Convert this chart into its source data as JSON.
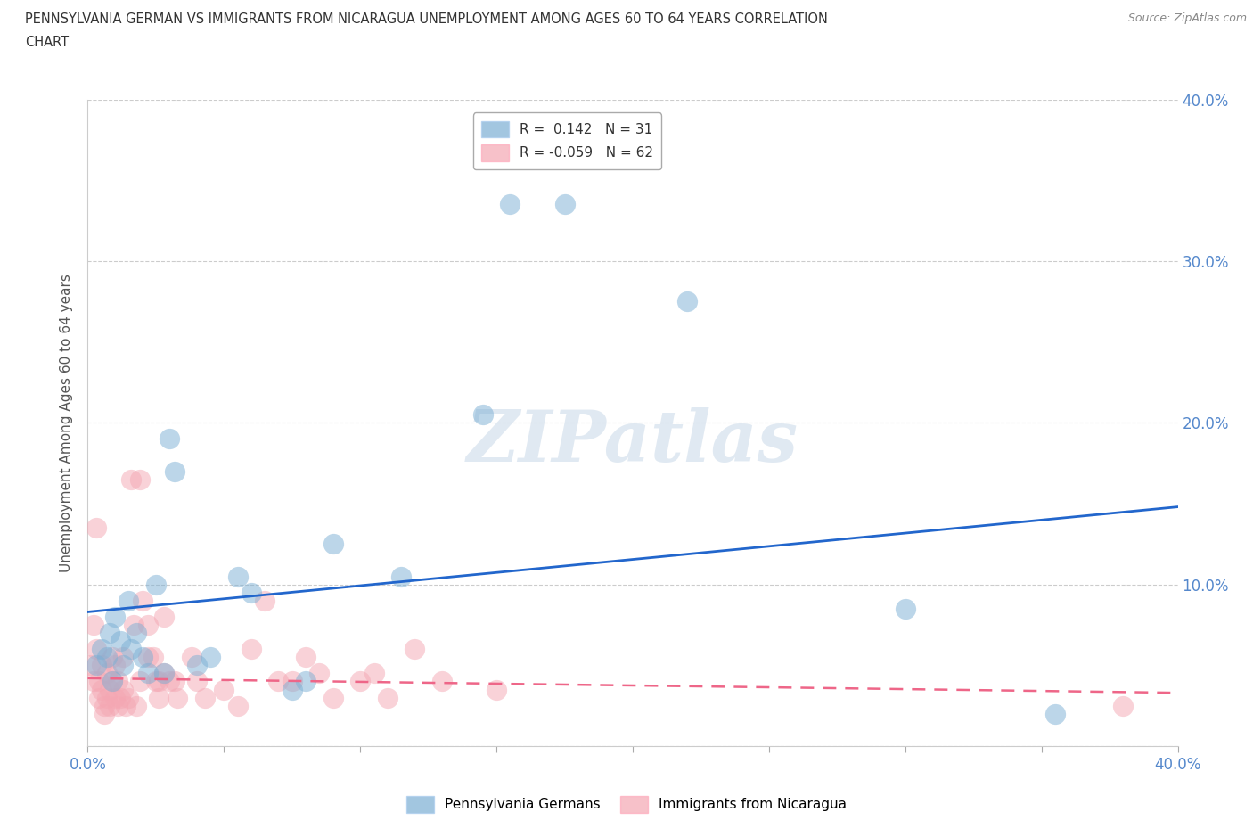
{
  "title_line1": "PENNSYLVANIA GERMAN VS IMMIGRANTS FROM NICARAGUA UNEMPLOYMENT AMONG AGES 60 TO 64 YEARS CORRELATION",
  "title_line2": "CHART",
  "source": "Source: ZipAtlas.com",
  "ylabel": "Unemployment Among Ages 60 to 64 years",
  "xlim": [
    0.0,
    0.4
  ],
  "ylim": [
    0.0,
    0.4
  ],
  "xticks": [
    0.0,
    0.05,
    0.1,
    0.15,
    0.2,
    0.25,
    0.3,
    0.35,
    0.4
  ],
  "yticks": [
    0.0,
    0.1,
    0.2,
    0.3,
    0.4
  ],
  "legend_r1": "R =  0.142   N = 31",
  "legend_r2": "R = -0.059   N = 62",
  "color_blue": "#7BAFD4",
  "color_pink": "#F4A7B3",
  "watermark": "ZIPatlas",
  "blue_scatter": [
    [
      0.003,
      0.05
    ],
    [
      0.005,
      0.06
    ],
    [
      0.007,
      0.055
    ],
    [
      0.008,
      0.07
    ],
    [
      0.009,
      0.04
    ],
    [
      0.01,
      0.08
    ],
    [
      0.012,
      0.065
    ],
    [
      0.013,
      0.05
    ],
    [
      0.015,
      0.09
    ],
    [
      0.016,
      0.06
    ],
    [
      0.018,
      0.07
    ],
    [
      0.02,
      0.055
    ],
    [
      0.022,
      0.045
    ],
    [
      0.025,
      0.1
    ],
    [
      0.028,
      0.045
    ],
    [
      0.03,
      0.19
    ],
    [
      0.032,
      0.17
    ],
    [
      0.04,
      0.05
    ],
    [
      0.045,
      0.055
    ],
    [
      0.055,
      0.105
    ],
    [
      0.06,
      0.095
    ],
    [
      0.075,
      0.035
    ],
    [
      0.08,
      0.04
    ],
    [
      0.09,
      0.125
    ],
    [
      0.115,
      0.105
    ],
    [
      0.145,
      0.205
    ],
    [
      0.155,
      0.335
    ],
    [
      0.175,
      0.335
    ],
    [
      0.22,
      0.275
    ],
    [
      0.3,
      0.085
    ],
    [
      0.355,
      0.02
    ]
  ],
  "pink_scatter": [
    [
      0.001,
      0.05
    ],
    [
      0.002,
      0.075
    ],
    [
      0.002,
      0.04
    ],
    [
      0.003,
      0.135
    ],
    [
      0.003,
      0.06
    ],
    [
      0.004,
      0.04
    ],
    [
      0.004,
      0.03
    ],
    [
      0.005,
      0.05
    ],
    [
      0.005,
      0.035
    ],
    [
      0.006,
      0.025
    ],
    [
      0.006,
      0.02
    ],
    [
      0.007,
      0.045
    ],
    [
      0.007,
      0.03
    ],
    [
      0.008,
      0.035
    ],
    [
      0.008,
      0.025
    ],
    [
      0.009,
      0.055
    ],
    [
      0.009,
      0.04
    ],
    [
      0.01,
      0.03
    ],
    [
      0.01,
      0.05
    ],
    [
      0.011,
      0.04
    ],
    [
      0.011,
      0.025
    ],
    [
      0.012,
      0.03
    ],
    [
      0.013,
      0.055
    ],
    [
      0.013,
      0.035
    ],
    [
      0.014,
      0.025
    ],
    [
      0.015,
      0.03
    ],
    [
      0.016,
      0.165
    ],
    [
      0.017,
      0.075
    ],
    [
      0.018,
      0.025
    ],
    [
      0.019,
      0.165
    ],
    [
      0.019,
      0.04
    ],
    [
      0.02,
      0.09
    ],
    [
      0.022,
      0.075
    ],
    [
      0.022,
      0.055
    ],
    [
      0.024,
      0.055
    ],
    [
      0.025,
      0.04
    ],
    [
      0.026,
      0.04
    ],
    [
      0.026,
      0.03
    ],
    [
      0.028,
      0.08
    ],
    [
      0.028,
      0.045
    ],
    [
      0.03,
      0.04
    ],
    [
      0.032,
      0.04
    ],
    [
      0.033,
      0.03
    ],
    [
      0.038,
      0.055
    ],
    [
      0.04,
      0.04
    ],
    [
      0.043,
      0.03
    ],
    [
      0.05,
      0.035
    ],
    [
      0.055,
      0.025
    ],
    [
      0.06,
      0.06
    ],
    [
      0.065,
      0.09
    ],
    [
      0.07,
      0.04
    ],
    [
      0.075,
      0.04
    ],
    [
      0.08,
      0.055
    ],
    [
      0.085,
      0.045
    ],
    [
      0.09,
      0.03
    ],
    [
      0.1,
      0.04
    ],
    [
      0.105,
      0.045
    ],
    [
      0.11,
      0.03
    ],
    [
      0.12,
      0.06
    ],
    [
      0.13,
      0.04
    ],
    [
      0.15,
      0.035
    ],
    [
      0.38,
      0.025
    ]
  ],
  "blue_trend_x": [
    0.0,
    0.4
  ],
  "blue_trend_y": [
    0.083,
    0.148
  ],
  "pink_trend_x": [
    0.0,
    0.4
  ],
  "pink_trend_y": [
    0.042,
    0.033
  ],
  "grid_color": "#CCCCCC",
  "bg_color": "#FFFFFF",
  "tick_color": "#5588CC",
  "spine_color": "#CCCCCC"
}
